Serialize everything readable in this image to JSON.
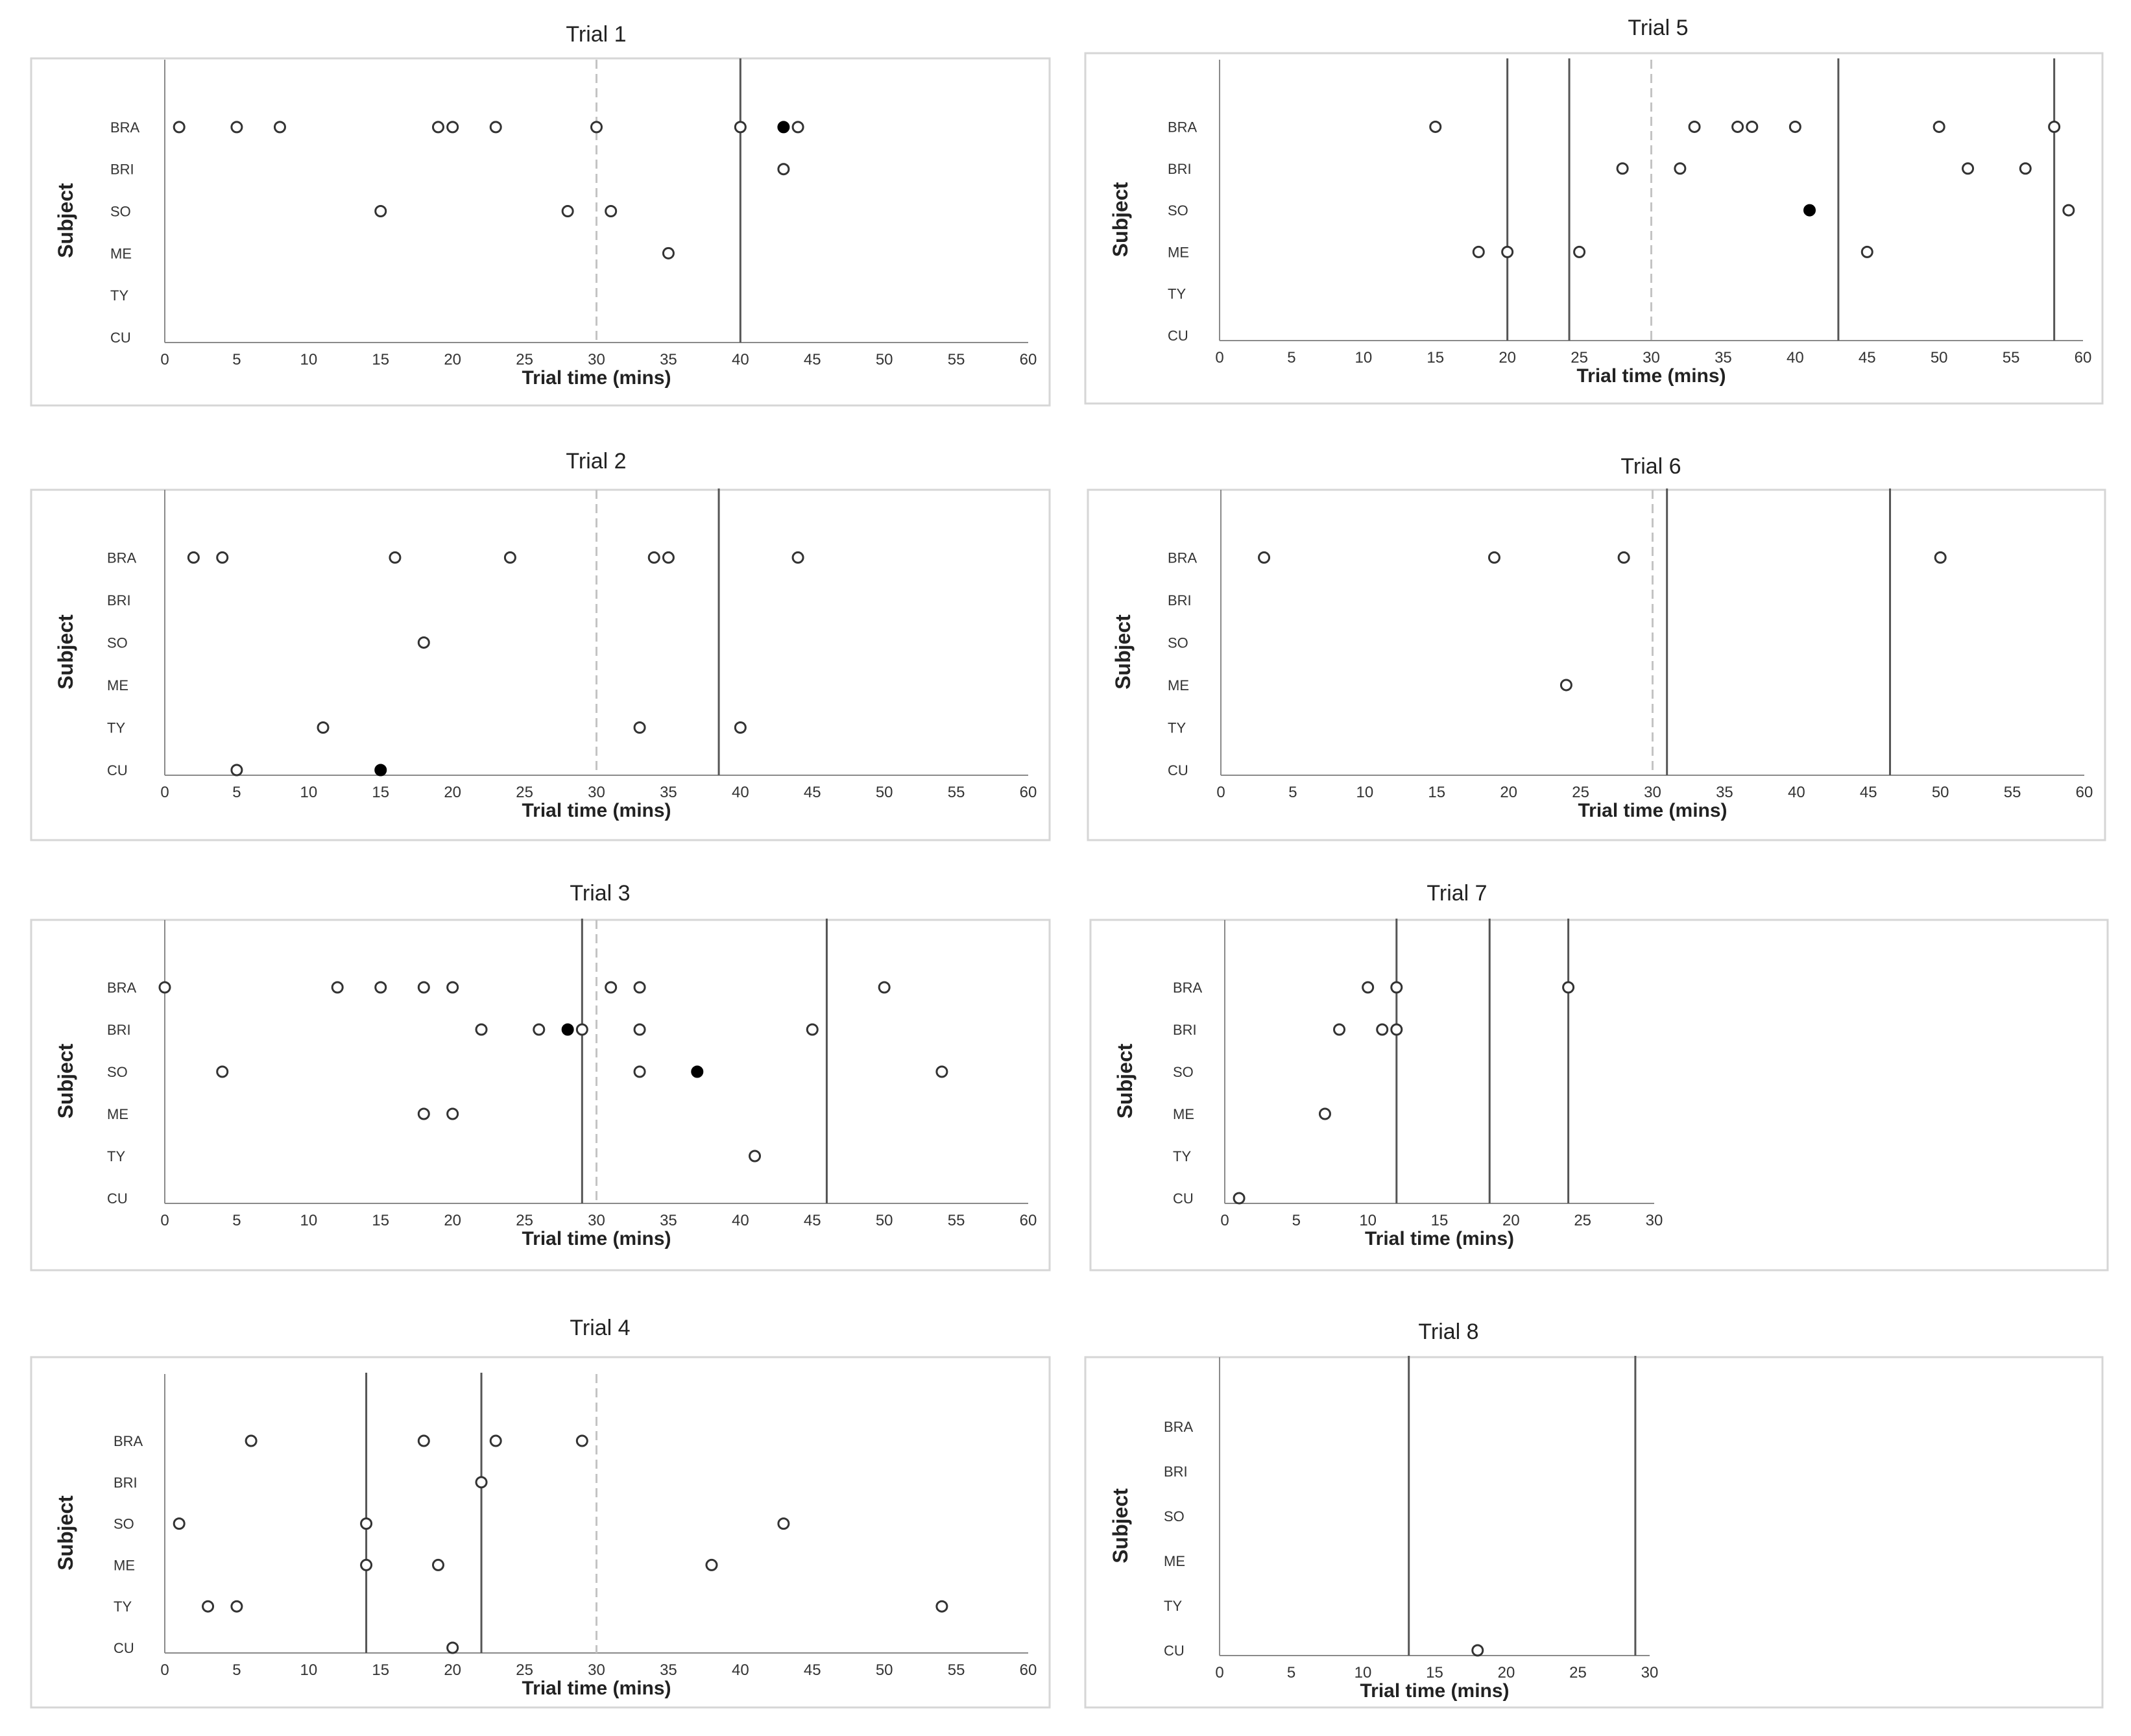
{
  "chart_data": [
    {
      "type": "scatter",
      "title": "Trial 1",
      "xlabel": "Trial time (mins)",
      "ylabel": "Subject",
      "categories": [
        "BRA",
        "BRI",
        "SO",
        "ME",
        "TY",
        "CU"
      ],
      "xlim": [
        0,
        60
      ],
      "xticks": [
        0,
        5,
        10,
        15,
        20,
        25,
        30,
        35,
        40,
        45,
        50,
        55,
        60
      ],
      "grid": false,
      "dashed_lines": [
        30
      ],
      "vertical_lines": [
        40
      ],
      "open_points": [
        {
          "subject": "BRA",
          "x": 1
        },
        {
          "subject": "BRA",
          "x": 5
        },
        {
          "subject": "BRA",
          "x": 8
        },
        {
          "subject": "BRA",
          "x": 19
        },
        {
          "subject": "BRA",
          "x": 20
        },
        {
          "subject": "BRA",
          "x": 23
        },
        {
          "subject": "BRA",
          "x": 30
        },
        {
          "subject": "BRA",
          "x": 40
        },
        {
          "subject": "BRA",
          "x": 44
        },
        {
          "subject": "BRI",
          "x": 43
        },
        {
          "subject": "SO",
          "x": 15
        },
        {
          "subject": "SO",
          "x": 28
        },
        {
          "subject": "SO",
          "x": 31
        },
        {
          "subject": "ME",
          "x": 35
        }
      ],
      "filled_points": [
        {
          "subject": "BRA",
          "x": 43
        }
      ]
    },
    {
      "type": "scatter",
      "title": "Trial 2",
      "xlabel": "Trial time (mins)",
      "ylabel": "Subject",
      "categories": [
        "BRA",
        "BRI",
        "SO",
        "ME",
        "TY",
        "CU"
      ],
      "xlim": [
        0,
        60
      ],
      "xticks": [
        0,
        5,
        10,
        15,
        20,
        25,
        30,
        35,
        40,
        45,
        50,
        55,
        60
      ],
      "grid": false,
      "dashed_lines": [
        30
      ],
      "vertical_lines": [
        38.5
      ],
      "open_points": [
        {
          "subject": "BRA",
          "x": 2
        },
        {
          "subject": "BRA",
          "x": 4
        },
        {
          "subject": "BRA",
          "x": 16
        },
        {
          "subject": "BRA",
          "x": 24
        },
        {
          "subject": "BRA",
          "x": 34
        },
        {
          "subject": "BRA",
          "x": 35
        },
        {
          "subject": "BRA",
          "x": 44
        },
        {
          "subject": "SO",
          "x": 18
        },
        {
          "subject": "TY",
          "x": 11
        },
        {
          "subject": "TY",
          "x": 33
        },
        {
          "subject": "TY",
          "x": 40
        },
        {
          "subject": "CU",
          "x": 5
        }
      ],
      "filled_points": [
        {
          "subject": "CU",
          "x": 15
        }
      ]
    },
    {
      "type": "scatter",
      "title": "Trial 3",
      "xlabel": "Trial time (mins)",
      "ylabel": "Subject",
      "categories": [
        "BRA",
        "BRI",
        "SO",
        "ME",
        "TY",
        "CU"
      ],
      "xlim": [
        0,
        60
      ],
      "xticks": [
        0,
        5,
        10,
        15,
        20,
        25,
        30,
        35,
        40,
        45,
        50,
        55,
        60
      ],
      "grid": false,
      "dashed_lines": [
        30
      ],
      "vertical_lines": [
        29,
        46
      ],
      "open_points": [
        {
          "subject": "BRA",
          "x": 0
        },
        {
          "subject": "BRA",
          "x": 12
        },
        {
          "subject": "BRA",
          "x": 15
        },
        {
          "subject": "BRA",
          "x": 18
        },
        {
          "subject": "BRA",
          "x": 20
        },
        {
          "subject": "BRA",
          "x": 31
        },
        {
          "subject": "BRA",
          "x": 33
        },
        {
          "subject": "BRA",
          "x": 50
        },
        {
          "subject": "BRI",
          "x": 22
        },
        {
          "subject": "BRI",
          "x": 26
        },
        {
          "subject": "BRI",
          "x": 29
        },
        {
          "subject": "BRI",
          "x": 33
        },
        {
          "subject": "BRI",
          "x": 45
        },
        {
          "subject": "SO",
          "x": 4
        },
        {
          "subject": "SO",
          "x": 33
        },
        {
          "subject": "SO",
          "x": 54
        },
        {
          "subject": "ME",
          "x": 18
        },
        {
          "subject": "ME",
          "x": 20
        },
        {
          "subject": "TY",
          "x": 41
        }
      ],
      "filled_points": [
        {
          "subject": "BRI",
          "x": 28
        },
        {
          "subject": "SO",
          "x": 37
        }
      ]
    },
    {
      "type": "scatter",
      "title": "Trial 4",
      "xlabel": "Trial time (mins)",
      "ylabel": "Subject",
      "categories": [
        "BRA",
        "BRI",
        "SO",
        "ME",
        "TY",
        "CU"
      ],
      "xlim": [
        0,
        60
      ],
      "xticks": [
        0,
        5,
        10,
        15,
        20,
        25,
        30,
        35,
        40,
        45,
        50,
        55,
        60
      ],
      "grid": false,
      "dashed_lines": [
        30
      ],
      "vertical_lines": [
        14,
        22
      ],
      "open_points": [
        {
          "subject": "BRA",
          "x": 6
        },
        {
          "subject": "BRA",
          "x": 18
        },
        {
          "subject": "BRA",
          "x": 23
        },
        {
          "subject": "BRA",
          "x": 29
        },
        {
          "subject": "BRI",
          "x": 22
        },
        {
          "subject": "SO",
          "x": 1
        },
        {
          "subject": "SO",
          "x": 14
        },
        {
          "subject": "SO",
          "x": 43
        },
        {
          "subject": "ME",
          "x": 14
        },
        {
          "subject": "ME",
          "x": 19
        },
        {
          "subject": "ME",
          "x": 38
        },
        {
          "subject": "TY",
          "x": 3
        },
        {
          "subject": "TY",
          "x": 5
        },
        {
          "subject": "TY",
          "x": 54
        },
        {
          "subject": "CU",
          "x": 20
        }
      ],
      "filled_points": []
    },
    {
      "type": "scatter",
      "title": "Trial 5",
      "xlabel": "Trial time (mins)",
      "ylabel": "Subject",
      "categories": [
        "BRA",
        "BRI",
        "SO",
        "ME",
        "TY",
        "CU"
      ],
      "xlim": [
        0,
        60
      ],
      "xticks": [
        0,
        5,
        10,
        15,
        20,
        25,
        30,
        35,
        40,
        45,
        50,
        55,
        60
      ],
      "grid": false,
      "dashed_lines": [
        30
      ],
      "vertical_lines": [
        20,
        24.3,
        43,
        58
      ],
      "open_points": [
        {
          "subject": "BRA",
          "x": 15
        },
        {
          "subject": "BRA",
          "x": 33
        },
        {
          "subject": "BRA",
          "x": 36
        },
        {
          "subject": "BRA",
          "x": 37
        },
        {
          "subject": "BRA",
          "x": 40
        },
        {
          "subject": "BRA",
          "x": 50
        },
        {
          "subject": "BRA",
          "x": 58
        },
        {
          "subject": "BRI",
          "x": 28
        },
        {
          "subject": "BRI",
          "x": 32
        },
        {
          "subject": "BRI",
          "x": 52
        },
        {
          "subject": "BRI",
          "x": 56
        },
        {
          "subject": "SO",
          "x": 59
        },
        {
          "subject": "ME",
          "x": 18
        },
        {
          "subject": "ME",
          "x": 20
        },
        {
          "subject": "ME",
          "x": 25
        },
        {
          "subject": "ME",
          "x": 45
        }
      ],
      "filled_points": [
        {
          "subject": "SO",
          "x": 41
        }
      ]
    },
    {
      "type": "scatter",
      "title": "Trial 6",
      "xlabel": "Trial time (mins)",
      "ylabel": "Subject",
      "categories": [
        "BRA",
        "BRI",
        "SO",
        "ME",
        "TY",
        "CU"
      ],
      "xlim": [
        0,
        60
      ],
      "xticks": [
        0,
        5,
        10,
        15,
        20,
        25,
        30,
        35,
        40,
        45,
        50,
        55,
        60
      ],
      "grid": false,
      "dashed_lines": [
        30
      ],
      "vertical_lines": [
        31,
        46.5
      ],
      "open_points": [
        {
          "subject": "BRA",
          "x": 3
        },
        {
          "subject": "BRA",
          "x": 19
        },
        {
          "subject": "BRA",
          "x": 28
        },
        {
          "subject": "BRA",
          "x": 50
        },
        {
          "subject": "ME",
          "x": 24
        }
      ],
      "filled_points": []
    },
    {
      "type": "scatter",
      "title": "Trial 7",
      "xlabel": "Trial time (mins)",
      "ylabel": "Subject",
      "categories": [
        "BRA",
        "BRI",
        "SO",
        "ME",
        "TY",
        "CU"
      ],
      "xlim": [
        0,
        30
      ],
      "xticks": [
        0,
        5,
        10,
        15,
        20,
        25,
        30
      ],
      "grid": false,
      "dashed_lines": [],
      "vertical_lines": [
        12,
        18.5,
        24
      ],
      "open_points": [
        {
          "subject": "BRA",
          "x": 10
        },
        {
          "subject": "BRA",
          "x": 12
        },
        {
          "subject": "BRA",
          "x": 24
        },
        {
          "subject": "BRI",
          "x": 8
        },
        {
          "subject": "BRI",
          "x": 11
        },
        {
          "subject": "BRI",
          "x": 12
        },
        {
          "subject": "ME",
          "x": 7
        },
        {
          "subject": "CU",
          "x": 1
        }
      ],
      "filled_points": []
    },
    {
      "type": "scatter",
      "title": "Trial 8",
      "xlabel": "Trial time (mins)",
      "ylabel": "Subject",
      "categories": [
        "BRA",
        "BRI",
        "SO",
        "ME",
        "TY",
        "CU"
      ],
      "xlim": [
        0,
        30
      ],
      "xticks": [
        0,
        5,
        10,
        15,
        20,
        25,
        30
      ],
      "grid": false,
      "dashed_lines": [],
      "vertical_lines": [
        13.2,
        29
      ],
      "open_points": [
        {
          "subject": "CU",
          "x": 18
        }
      ],
      "filled_points": []
    }
  ]
}
